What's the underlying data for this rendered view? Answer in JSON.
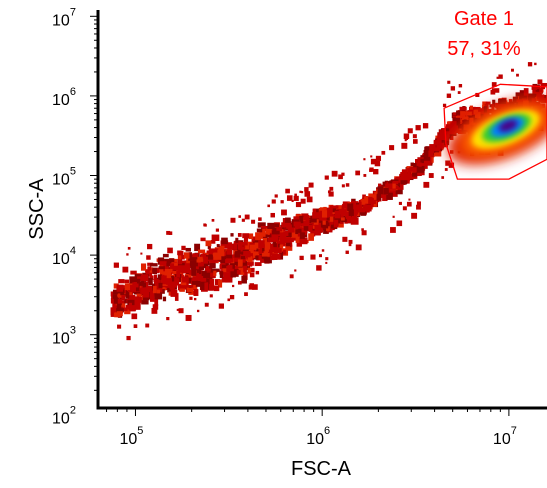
{
  "chart_data": {
    "type": "scatter",
    "title": "",
    "xlabel": "FSC-A",
    "ylabel": "SSC-A",
    "x_scale": "log",
    "y_scale": "log",
    "xlim": [
      63000,
      16000000
    ],
    "ylim": [
      120,
      12000000
    ],
    "x_ticks": [
      {
        "base": "10",
        "exp": "5",
        "value": 100000
      },
      {
        "base": "10",
        "exp": "6",
        "value": 1000000
      },
      {
        "base": "10",
        "exp": "7",
        "value": 10000000
      }
    ],
    "y_ticks": [
      {
        "base": "10",
        "exp": "2",
        "value": 100
      },
      {
        "base": "10",
        "exp": "3",
        "value": 1000
      },
      {
        "base": "10",
        "exp": "4",
        "value": 10000
      },
      {
        "base": "10",
        "exp": "5",
        "value": 100000
      },
      {
        "base": "10",
        "exp": "6",
        "value": 1000000
      },
      {
        "base": "10",
        "exp": "7",
        "value": 10000000
      }
    ],
    "density_population": {
      "ridge": [
        {
          "x": 70000,
          "y": 2500
        },
        {
          "x": 120000,
          "y": 5000
        },
        {
          "x": 200000,
          "y": 7000
        },
        {
          "x": 400000,
          "y": 12000
        },
        {
          "x": 800000,
          "y": 25000
        },
        {
          "x": 1500000,
          "y": 40000
        },
        {
          "x": 3000000,
          "y": 120000
        },
        {
          "x": 5000000,
          "y": 500000
        },
        {
          "x": 10000000,
          "y": 600000
        },
        {
          "x": 15000000,
          "y": 1000000
        }
      ],
      "peak": {
        "x": 10000000,
        "y": 400000
      },
      "colormap": [
        "#8b0000",
        "#c00000",
        "#e02000",
        "#ff6a00",
        "#ffe000",
        "#33cc33",
        "#0080ff",
        "#4b0082"
      ]
    },
    "gate": {
      "name": "Gate 1",
      "percent": "57, 31%",
      "color": "#ff0000",
      "polygon": [
        {
          "x": 4500000,
          "y": 700000
        },
        {
          "x": 9000000,
          "y": 1400000
        },
        {
          "x": 16000000,
          "y": 1300000
        },
        {
          "x": 16000000,
          "y": 160000
        },
        {
          "x": 10000000,
          "y": 90000
        },
        {
          "x": 5300000,
          "y": 90000
        },
        {
          "x": 4600000,
          "y": 250000
        }
      ]
    },
    "grid": false,
    "legend": "none"
  }
}
